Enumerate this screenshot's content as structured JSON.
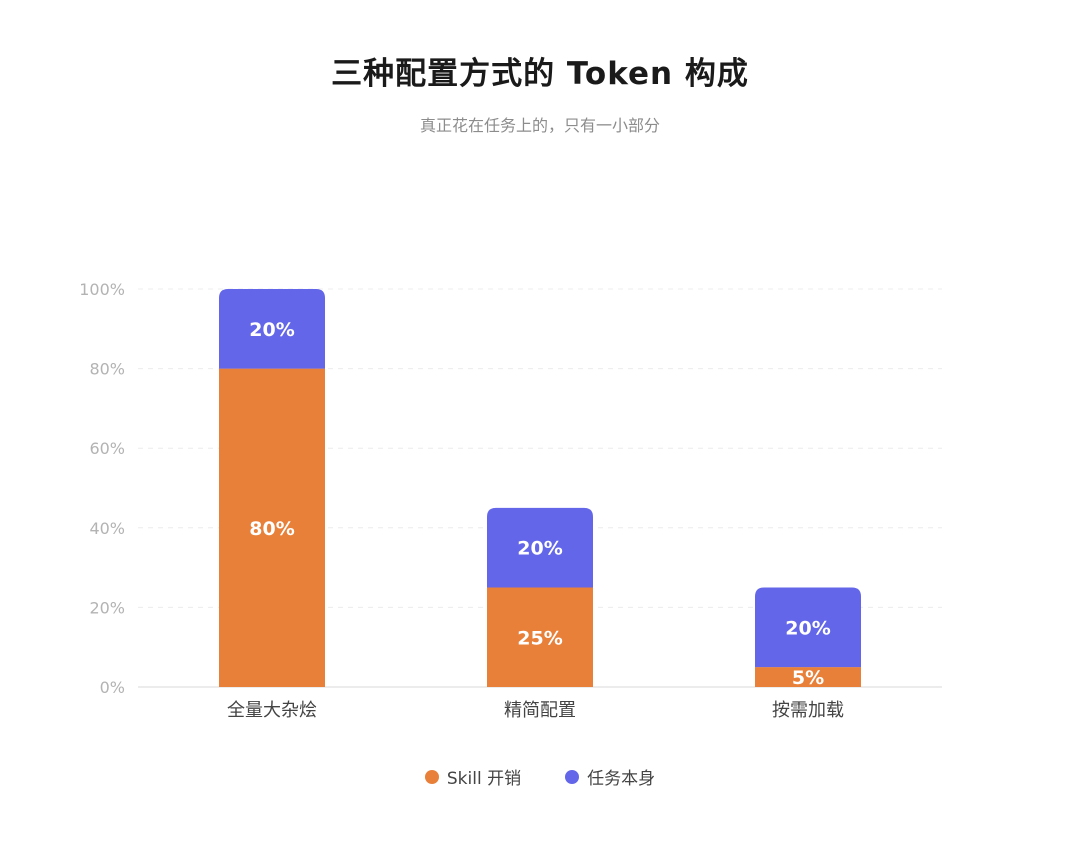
{
  "chart_data": {
    "type": "bar",
    "stacked": true,
    "title": "三种配置方式的 Token 构成",
    "subtitle": "真正花在任务上的，只有一小部分",
    "categories": [
      "全量大杂烩",
      "精简配置",
      "按需加载"
    ],
    "series": [
      {
        "name": "Skill 开销",
        "values": [
          80,
          25,
          5
        ],
        "labels": [
          "80%",
          "25%",
          "5%"
        ],
        "color": "#E8803A"
      },
      {
        "name": "任务本身",
        "values": [
          20,
          20,
          20
        ],
        "labels": [
          "20%",
          "20%",
          "20%"
        ],
        "color": "#6366E9"
      }
    ],
    "ylim": [
      0,
      100
    ],
    "yticks": [
      0,
      20,
      40,
      60,
      80,
      100
    ],
    "ytick_labels": [
      "0%",
      "20%",
      "40%",
      "60%",
      "80%",
      "100%"
    ],
    "xlabel": "",
    "ylabel": "",
    "grid": true,
    "legend_position": "bottom-center"
  }
}
